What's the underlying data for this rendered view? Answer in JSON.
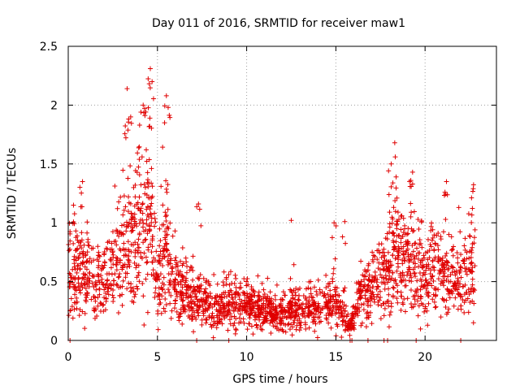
{
  "chart_data": {
    "type": "scatter",
    "title": "Day 011 of 2016, SRMTID for receiver maw1",
    "xlabel": "GPS time / hours",
    "ylabel": "SRMTID / TECUs",
    "xlim": [
      0,
      24
    ],
    "ylim": [
      0,
      2.5
    ],
    "grid": true,
    "x_ticks": [
      0,
      5,
      10,
      15,
      20
    ],
    "x_tick_labels": [
      "0",
      "5",
      "10",
      "15",
      "20"
    ],
    "y_ticks": [
      0,
      0.5,
      1,
      1.5,
      2,
      2.5
    ],
    "y_tick_labels": [
      "0",
      "0.5",
      "1",
      "1.5",
      "2",
      "2.5"
    ],
    "marker": "+",
    "series": [
      {
        "name": "maw1",
        "color": "#e00000",
        "profile": {
          "x_start": 0.0,
          "x_end": 22.8,
          "samples_per_hour": 100,
          "baseline": [
            [
              0.0,
              0.62
            ],
            [
              1.0,
              0.55
            ],
            [
              2.0,
              0.48
            ],
            [
              2.7,
              0.65
            ],
            [
              3.3,
              0.85
            ],
            [
              4.0,
              0.9
            ],
            [
              4.6,
              0.95
            ],
            [
              5.0,
              0.45
            ],
            [
              5.5,
              0.75
            ],
            [
              6.2,
              0.45
            ],
            [
              7.0,
              0.35
            ],
            [
              8.0,
              0.28
            ],
            [
              9.0,
              0.32
            ],
            [
              10.0,
              0.3
            ],
            [
              11.0,
              0.25
            ],
            [
              12.0,
              0.22
            ],
            [
              13.0,
              0.25
            ],
            [
              14.0,
              0.28
            ],
            [
              15.0,
              0.35
            ],
            [
              15.8,
              0.1
            ],
            [
              16.5,
              0.45
            ],
            [
              17.5,
              0.5
            ],
            [
              18.3,
              0.75
            ],
            [
              19.0,
              0.62
            ],
            [
              20.0,
              0.6
            ],
            [
              21.0,
              0.55
            ],
            [
              22.0,
              0.5
            ],
            [
              22.8,
              0.65
            ]
          ],
          "peaks": [
            {
              "x": 3.3,
              "y": 2.14
            },
            {
              "x": 3.5,
              "y": 1.9
            },
            {
              "x": 4.0,
              "y": 1.83
            },
            {
              "x": 4.6,
              "y": 2.31
            },
            {
              "x": 4.7,
              "y": 2.2
            },
            {
              "x": 4.2,
              "y": 2.0
            },
            {
              "x": 5.5,
              "y": 2.08
            },
            {
              "x": 5.6,
              "y": 1.98
            },
            {
              "x": 5.4,
              "y": 1.85
            },
            {
              "x": 0.8,
              "y": 1.35
            },
            {
              "x": 7.3,
              "y": 1.16
            },
            {
              "x": 12.5,
              "y": 1.02
            },
            {
              "x": 14.9,
              "y": 1.0
            },
            {
              "x": 15.5,
              "y": 1.01
            },
            {
              "x": 18.3,
              "y": 1.68
            },
            {
              "x": 18.1,
              "y": 1.5
            },
            {
              "x": 19.3,
              "y": 1.43
            },
            {
              "x": 21.2,
              "y": 1.35
            },
            {
              "x": 22.7,
              "y": 1.29
            },
            {
              "x": 19.2,
              "y": 1.36
            }
          ],
          "zero_points": [
            0.1,
            7.2,
            9.0,
            15.8,
            15.9,
            16.8,
            17.7,
            17.9,
            19.5,
            22.0
          ]
        }
      }
    ]
  }
}
